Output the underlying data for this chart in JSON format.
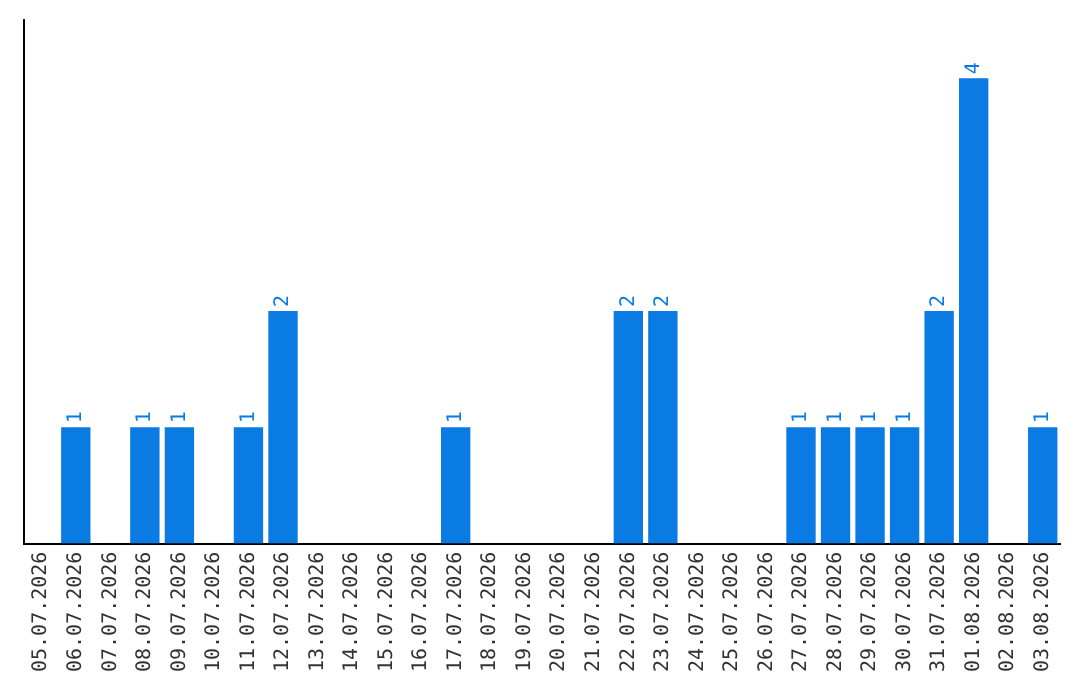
{
  "chart_data": {
    "type": "bar",
    "categories": [
      "05.07.2026",
      "06.07.2026",
      "07.07.2026",
      "08.07.2026",
      "09.07.2026",
      "10.07.2026",
      "11.07.2026",
      "12.07.2026",
      "13.07.2026",
      "14.07.2026",
      "15.07.2026",
      "16.07.2026",
      "17.07.2026",
      "18.07.2026",
      "19.07.2026",
      "20.07.2026",
      "21.07.2026",
      "22.07.2026",
      "23.07.2026",
      "24.07.2026",
      "25.07.2026",
      "26.07.2026",
      "27.07.2026",
      "28.07.2026",
      "29.07.2026",
      "30.07.2026",
      "31.07.2026",
      "01.08.2026",
      "02.08.2026",
      "03.08.2026"
    ],
    "values": [
      0,
      1,
      0,
      1,
      1,
      0,
      1,
      2,
      0,
      0,
      0,
      0,
      1,
      0,
      0,
      0,
      0,
      2,
      2,
      0,
      0,
      0,
      1,
      1,
      1,
      1,
      2,
      4,
      0,
      1
    ],
    "value_labels": [
      null,
      "1",
      null,
      "1",
      "1",
      null,
      "1",
      "2",
      null,
      null,
      null,
      null,
      "1",
      null,
      null,
      null,
      null,
      "2",
      "2",
      null,
      null,
      null,
      "1",
      "1",
      "1",
      "1",
      "2",
      "4",
      null,
      "1"
    ],
    "color": "#0a7be3",
    "grid": false,
    "legend": false
  }
}
